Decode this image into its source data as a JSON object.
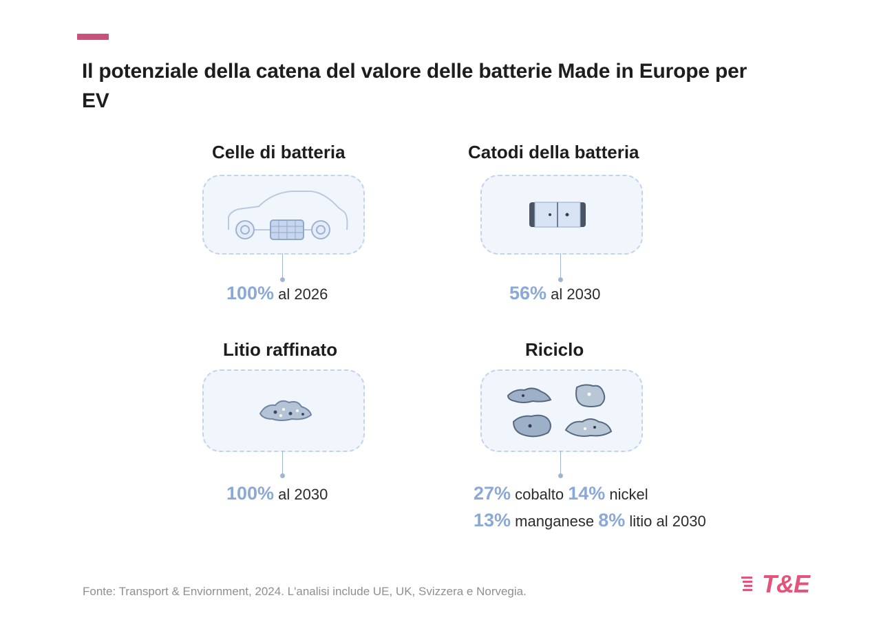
{
  "title": "Il potenziale della catena del valore delle batterie Made in Europe per EV",
  "sections": [
    {
      "title": "Celle di batteria",
      "icon": "car-battery-icon",
      "stats": [
        [
          {
            "pct": "100%",
            "text": " al 2026"
          }
        ]
      ]
    },
    {
      "title": "Catodi della batteria",
      "icon": "battery-cell-icon",
      "stats": [
        [
          {
            "pct": "56%",
            "text": " al 2030"
          }
        ]
      ]
    },
    {
      "title": "Litio raffinato",
      "icon": "lithium-ore-icon",
      "stats": [
        [
          {
            "pct": "100%",
            "text": " al 2030"
          }
        ]
      ]
    },
    {
      "title": "Riciclo",
      "icon": "recycled-metals-icon",
      "stats": [
        [
          {
            "pct": "27%",
            "text": " cobalto "
          },
          {
            "pct": "14%",
            "text": " nickel"
          }
        ],
        [
          {
            "pct": "13%",
            "text": " manganese "
          },
          {
            "pct": "8%",
            "text": " litio al 2030"
          }
        ]
      ]
    }
  ],
  "footer": "Fonte: Transport & Enviornment, 2024. L'analisi include UE, UK, Svizzera e Norvegia.",
  "logo": "T&E",
  "colors": {
    "accent": "#c9527d",
    "percent": "#8aa9d6",
    "card_bg": "#f1f6fd",
    "logo": "#e4547a"
  }
}
